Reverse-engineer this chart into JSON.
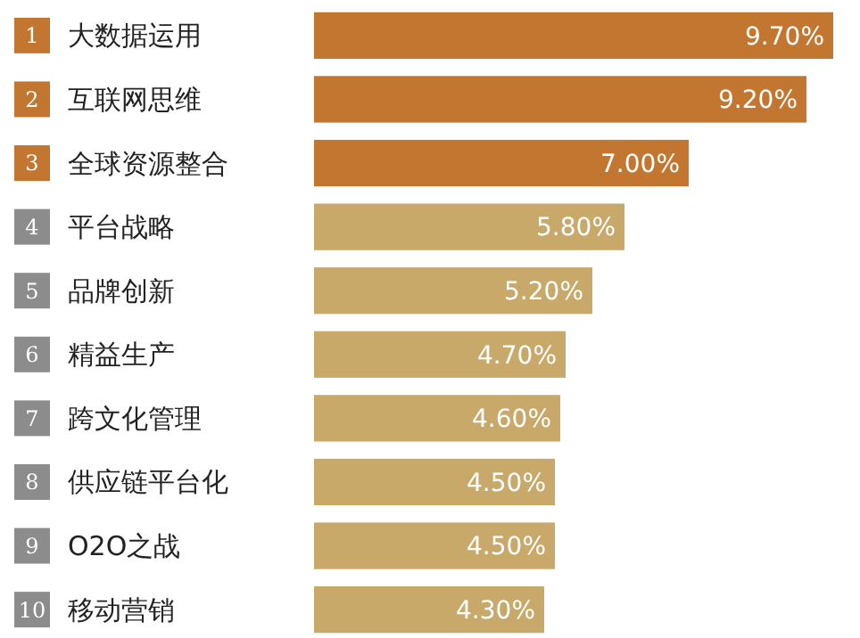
{
  "chart_data": {
    "type": "bar",
    "orientation": "horizontal",
    "categories": [
      "大数据运用",
      "互联网思维",
      "全球资源整合",
      "平台战略",
      "品牌创新",
      "精益生产",
      "跨文化管理",
      "供应链平台化",
      "O2O之战",
      "移动营销"
    ],
    "values": [
      9.7,
      9.2,
      7.0,
      5.8,
      5.2,
      4.7,
      4.6,
      4.5,
      4.5,
      4.3
    ],
    "value_labels": [
      "9.70%",
      "9.20%",
      "7.00%",
      "5.80%",
      "5.20%",
      "4.70%",
      "4.60%",
      "4.50%",
      "4.50%",
      "4.30%"
    ],
    "colors": [
      "#c27630",
      "#c27630",
      "#c27630",
      "#c8a96a",
      "#c8a96a",
      "#c8a96a",
      "#c8a96a",
      "#c8a96a",
      "#c8a96a",
      "#c8a96a"
    ],
    "annotations": [
      "1",
      "2",
      "3",
      "4",
      "5",
      "6",
      "7",
      "8",
      "9",
      "10"
    ]
  }
}
